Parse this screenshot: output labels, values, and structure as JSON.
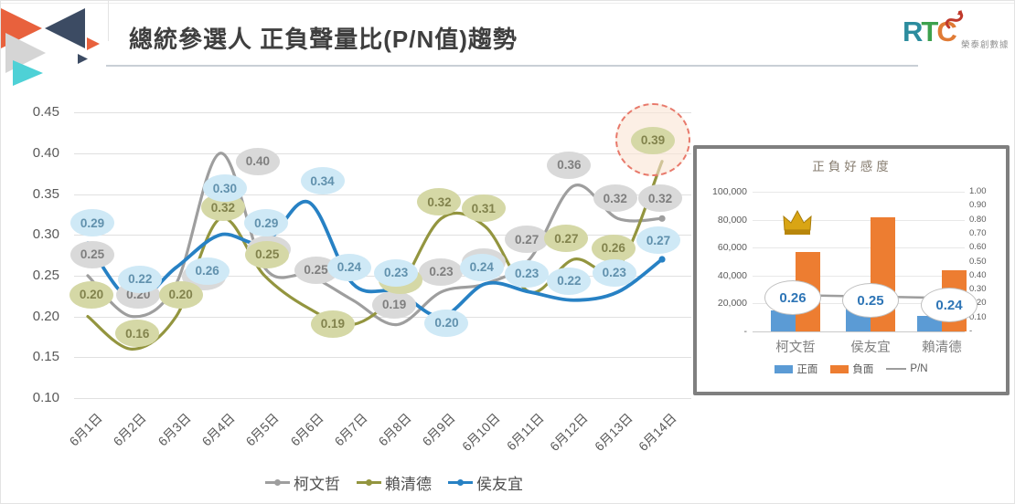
{
  "header": {
    "title": "總統參選人 正負聲量比(P/N值)趨勢",
    "brand": {
      "r": "R",
      "t": "T",
      "c": "C",
      "suffix": "榮泰創數據"
    }
  },
  "colors": {
    "ko_line": "#9e9e9e",
    "lai_line": "#93953f",
    "hou_line": "#2781c4",
    "positive_bar": "#5b9bd5",
    "negative_bar": "#ed7d31",
    "pn_value_text": "#2e75b6",
    "highlight_ring": "#e8796b"
  },
  "chart_data": [
    {
      "type": "line",
      "title": "總統參選人 正負聲量比(P/N值)趨勢",
      "x": [
        "6月1日",
        "6月2日",
        "6月3日",
        "6月4日",
        "6月5日",
        "6月6日",
        "6月7日",
        "6月8日",
        "6月9日",
        "6月10日",
        "6月11日",
        "6月12日",
        "6月13日",
        "6月14日"
      ],
      "ylim": [
        0.1,
        0.45
      ],
      "yticks": [
        "0.45",
        "0.40",
        "0.35",
        "0.30",
        "0.25",
        "0.20",
        "0.15",
        "0.10"
      ],
      "grid": true,
      "legend_position": "bottom",
      "series": [
        {
          "name": "柯文哲",
          "color": "#9e9e9e",
          "bubble_fill": "#d9d9d9",
          "bubble_text_color": "#7f7f7f",
          "values": [
            0.25,
            0.2,
            0.24,
            0.4,
            0.26,
            0.25,
            0.22,
            0.19,
            0.23,
            0.24,
            0.27,
            0.36,
            0.32,
            0.32
          ],
          "labels": [
            "0.25",
            "0.20",
            "",
            "0.40",
            "",
            "0.25",
            null,
            "0.19",
            "0.23",
            "",
            "0.27",
            "0.36",
            "0.32",
            "0.32"
          ]
        },
        {
          "name": "賴清德",
          "color": "#93953f",
          "bubble_fill": "#d5d8a6",
          "bubble_text_color": "#82834d",
          "values": [
            0.2,
            0.16,
            0.2,
            0.32,
            0.25,
            0.21,
            0.19,
            0.23,
            0.32,
            0.31,
            0.23,
            0.27,
            0.26,
            0.39
          ],
          "labels": [
            "0.20",
            "0.16",
            "0.20",
            "0.32",
            "0.25",
            null,
            "0.19",
            "",
            "0.32",
            "0.31",
            null,
            "0.27",
            "0.26",
            "0.39"
          ]
        },
        {
          "name": "侯友宜",
          "color": "#2781c4",
          "bubble_fill": "#cfe9f6",
          "bubble_text_color": "#6191ad",
          "values": [
            0.29,
            0.22,
            0.26,
            0.3,
            0.29,
            0.34,
            0.24,
            0.23,
            0.2,
            0.24,
            0.23,
            0.22,
            0.23,
            0.27
          ],
          "labels": [
            "0.29",
            "0.22",
            "0.26",
            "0.30",
            "0.29",
            "0.34",
            "0.24",
            "0.23",
            "0.20",
            "0.24",
            "0.23",
            "0.22",
            "0.23",
            "0.27"
          ]
        }
      ],
      "highlight": {
        "series": "賴清德",
        "x": "6月14日",
        "label": "0.39"
      }
    },
    {
      "type": "bar",
      "title": "正負好感度",
      "categories": [
        "柯文哲",
        "侯友宜",
        "賴清德"
      ],
      "series": [
        {
          "name": "正面",
          "color": "#5b9bd5",
          "values": [
            15000,
            20000,
            11000
          ]
        },
        {
          "name": "負面",
          "color": "#ed7d31",
          "values": [
            57000,
            82000,
            44000
          ]
        },
        {
          "name": "P/N",
          "type": "line",
          "color": "#a6a6a6",
          "values": [
            0.26,
            0.25,
            0.24
          ],
          "labels": [
            "0.26",
            "0.25",
            "0.24"
          ]
        }
      ],
      "left_axis_ticks": [
        "100,000",
        "80,000",
        "60,000",
        "40,000",
        "20,000",
        "-"
      ],
      "right_axis_ticks": [
        "1.00",
        "0.90",
        "0.80",
        "0.70",
        "0.60",
        "0.50",
        "0.40",
        "0.30",
        "0.20",
        "0.10",
        "-"
      ],
      "left_ylim": [
        0,
        100000
      ],
      "right_ylim": [
        0,
        1.0
      ],
      "crown_over": "柯文哲",
      "legend": [
        "正面",
        "負面",
        "P/N"
      ]
    }
  ]
}
